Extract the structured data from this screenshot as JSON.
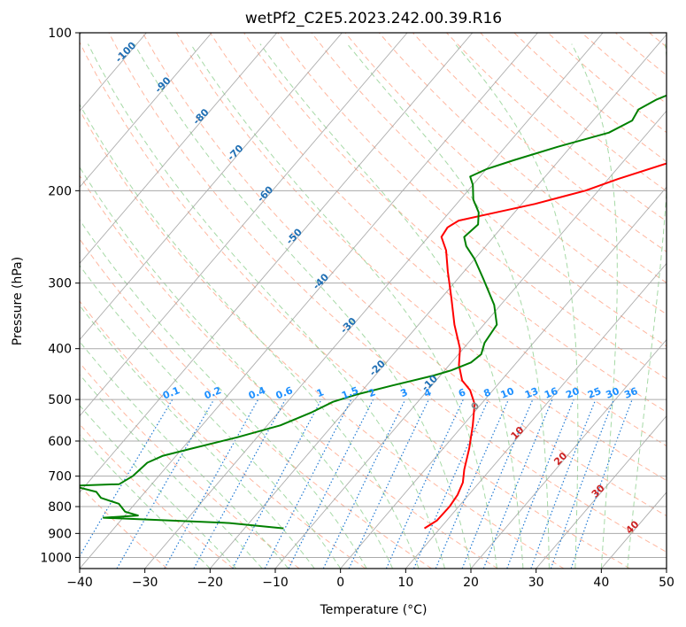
{
  "chart_data": {
    "type": "line",
    "title": "wetPf2_C2E5.2023.242.00.39.R16",
    "xlabel": "Temperature (°C)",
    "ylabel": "Pressure (hPa)",
    "xlim": [
      -40,
      50
    ],
    "ylim": [
      1050,
      100
    ],
    "y_scale": "log",
    "grid": true,
    "x_ticks": [
      -40,
      -30,
      -20,
      -10,
      0,
      10,
      20,
      30,
      40,
      50
    ],
    "y_ticks": [
      100,
      200,
      300,
      400,
      500,
      600,
      700,
      800,
      900,
      1000
    ],
    "colors": {
      "temperature": "#ff0000",
      "dewpoint": "#008000",
      "dry_adiabat": "#ff9977",
      "moist_adiabat": "#88cc88",
      "mixing_ratio": "#1e78d2",
      "isotherm": "#999999",
      "isotherm_label": "#1f6fb4",
      "mixing_label": "#1e90ff",
      "positive_label": "#cc2222"
    },
    "series": [
      {
        "kind": "temperature",
        "points": [
          [
            7.6,
            880
          ],
          [
            8.5,
            850
          ],
          [
            8.6,
            800
          ],
          [
            8.3,
            760
          ],
          [
            7.5,
            720
          ],
          [
            6.0,
            680
          ],
          [
            4.0,
            620
          ],
          [
            1.5,
            560
          ],
          [
            -1.0,
            510
          ],
          [
            -3.5,
            480
          ],
          [
            -6.0,
            460
          ],
          [
            -8.5,
            430
          ],
          [
            -10.5,
            400
          ],
          [
            -14.5,
            360
          ],
          [
            -18.5,
            320
          ],
          [
            -22.5,
            285
          ],
          [
            -25.5,
            260
          ],
          [
            -28.0,
            245
          ],
          [
            -28.3,
            235
          ],
          [
            -27.5,
            228
          ],
          [
            -24.0,
            222
          ],
          [
            -18.0,
            212
          ],
          [
            -12.0,
            200
          ],
          [
            -8.5,
            190
          ],
          [
            -2.0,
            175
          ],
          [
            3.5,
            160
          ],
          [
            8.5,
            145
          ],
          [
            13.0,
            130
          ],
          [
            16.5,
            120
          ],
          [
            20.0,
            108
          ],
          [
            22.0,
            100
          ]
        ]
      },
      {
        "kind": "dewpoint",
        "points": [
          [
            -14.0,
            880
          ],
          [
            -23.0,
            860
          ],
          [
            -43.0,
            840
          ],
          [
            -38.0,
            832
          ],
          [
            -40.5,
            818
          ],
          [
            -42.5,
            790
          ],
          [
            -46.0,
            770
          ],
          [
            -47.5,
            750
          ],
          [
            -52.0,
            730
          ],
          [
            -45.0,
            725
          ],
          [
            -44.0,
            700
          ],
          [
            -43.5,
            660
          ],
          [
            -42.0,
            640
          ],
          [
            -38.5,
            620
          ],
          [
            -33.0,
            590
          ],
          [
            -28.0,
            560
          ],
          [
            -25.0,
            530
          ],
          [
            -23.0,
            505
          ],
          [
            -20.5,
            490
          ],
          [
            -16.0,
            470
          ],
          [
            -11.0,
            450
          ],
          [
            -9.0,
            440
          ],
          [
            -7.0,
            425
          ],
          [
            -6.5,
            410
          ],
          [
            -7.5,
            390
          ],
          [
            -8.0,
            360
          ],
          [
            -11.0,
            330
          ],
          [
            -16.0,
            295
          ],
          [
            -20.0,
            270
          ],
          [
            -23.0,
            255
          ],
          [
            -24.5,
            245
          ],
          [
            -24.0,
            232
          ],
          [
            -25.5,
            220
          ],
          [
            -28.0,
            208
          ],
          [
            -30.0,
            195
          ],
          [
            -31.5,
            188
          ],
          [
            -30.0,
            182
          ],
          [
            -27.0,
            175
          ],
          [
            -22.0,
            165
          ],
          [
            -16.0,
            155
          ],
          [
            -14.0,
            147
          ],
          [
            -14.5,
            140
          ],
          [
            -13.0,
            134
          ],
          [
            -10.0,
            127
          ],
          [
            -7.5,
            120
          ],
          [
            -5.0,
            113
          ],
          [
            -3.0,
            106
          ],
          [
            -1.5,
            100
          ]
        ]
      }
    ],
    "isotherm_labels": [
      "-100",
      "-90",
      "-80",
      "-70",
      "-60",
      "-50",
      "-40",
      "-30",
      "-20",
      "-10",
      "0",
      "10",
      "20",
      "30",
      "40"
    ],
    "mixing_ratio_labels": [
      "0.1",
      "0.2",
      "0.4",
      "0.6",
      "1",
      "1.5",
      "2",
      "3",
      "4",
      "6",
      "8",
      "10",
      "13",
      "16",
      "20",
      "25",
      "30",
      "36"
    ]
  }
}
